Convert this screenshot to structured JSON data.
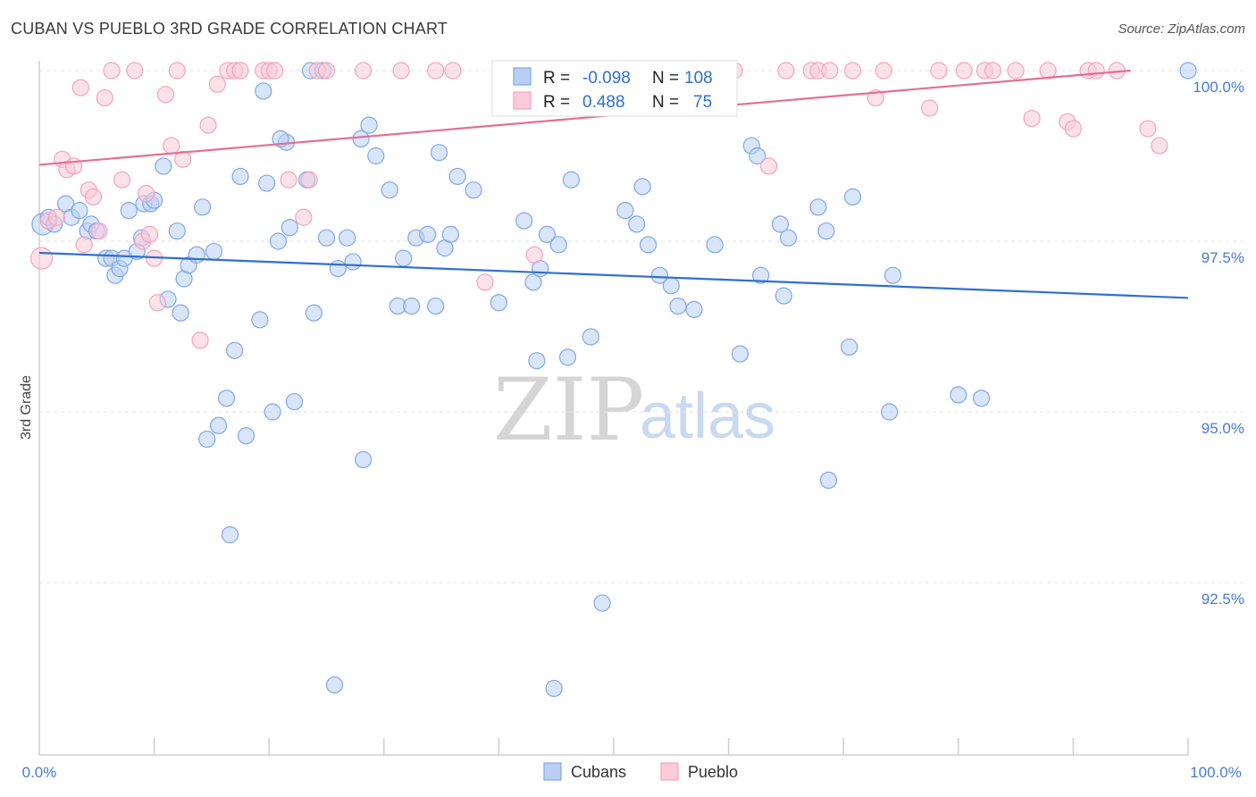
{
  "header": {
    "title": "CUBAN VS PUEBLO 3RD GRADE CORRELATION CHART",
    "source": "Source: ZipAtlas.com"
  },
  "chart_data": {
    "type": "scatter",
    "title": "CUBAN VS PUEBLO 3RD GRADE CORRELATION CHART",
    "xlabel": "",
    "ylabel": "3rd Grade",
    "xlim": [
      0,
      100
    ],
    "ylim": [
      90.3,
      100.4
    ],
    "x_tick_labels": [
      "0.0%",
      "100.0%"
    ],
    "y_ticks": [
      {
        "value": 92.5,
        "label": "92.5%"
      },
      {
        "value": 95.0,
        "label": "95.0%"
      },
      {
        "value": 97.5,
        "label": "97.5%"
      },
      {
        "value": 100.0,
        "label": "100.0%"
      }
    ],
    "grid": "horizontal-dashed",
    "legend_position": "top-center",
    "watermark": {
      "part1": "ZIP",
      "part2": "atlas"
    },
    "series": [
      {
        "name": "Cubans",
        "color": "#7fa8e8",
        "line_color": "#2f6fd0",
        "stats": {
          "r_label": "R =",
          "r_value": "-0.098",
          "n_label": "N =",
          "n_value": "108"
        },
        "trend": {
          "x": [
            0,
            100
          ],
          "y": [
            97.33,
            96.67
          ]
        },
        "points": [
          [
            0.3,
            97.75
          ],
          [
            0.8,
            97.85
          ],
          [
            1.3,
            97.75
          ],
          [
            2.3,
            98.05
          ],
          [
            2.8,
            97.85
          ],
          [
            3.5,
            97.95
          ],
          [
            4.2,
            97.65
          ],
          [
            4.5,
            97.75
          ],
          [
            5.0,
            97.65
          ],
          [
            5.8,
            97.25
          ],
          [
            6.3,
            97.25
          ],
          [
            6.6,
            97.0
          ],
          [
            7.0,
            97.1
          ],
          [
            7.4,
            97.25
          ],
          [
            7.8,
            97.95
          ],
          [
            8.5,
            97.35
          ],
          [
            8.9,
            97.55
          ],
          [
            9.1,
            98.05
          ],
          [
            9.7,
            98.05
          ],
          [
            10.0,
            98.1
          ],
          [
            10.8,
            98.6
          ],
          [
            11.2,
            96.65
          ],
          [
            12.0,
            97.65
          ],
          [
            12.3,
            96.45
          ],
          [
            12.6,
            96.95
          ],
          [
            13.0,
            97.15
          ],
          [
            13.7,
            97.3
          ],
          [
            14.2,
            98.0
          ],
          [
            14.6,
            94.6
          ],
          [
            15.2,
            97.35
          ],
          [
            15.6,
            94.8
          ],
          [
            16.3,
            95.2
          ],
          [
            16.6,
            93.2
          ],
          [
            17.0,
            95.9
          ],
          [
            17.5,
            98.45
          ],
          [
            18.0,
            94.65
          ],
          [
            19.2,
            96.35
          ],
          [
            19.5,
            99.7
          ],
          [
            19.8,
            98.35
          ],
          [
            20.3,
            95.0
          ],
          [
            20.8,
            97.5
          ],
          [
            21.5,
            98.95
          ],
          [
            21.8,
            97.7
          ],
          [
            22.2,
            95.15
          ],
          [
            23.3,
            98.4
          ],
          [
            23.6,
            100.0
          ],
          [
            23.9,
            96.45
          ],
          [
            24.7,
            100.0
          ],
          [
            25.0,
            97.55
          ],
          [
            25.7,
            91.0
          ],
          [
            26.0,
            97.1
          ],
          [
            26.8,
            97.55
          ],
          [
            27.3,
            97.2
          ],
          [
            28.2,
            94.3
          ],
          [
            28.0,
            99.0
          ],
          [
            28.7,
            99.2
          ],
          [
            29.3,
            98.75
          ],
          [
            30.5,
            98.25
          ],
          [
            31.2,
            96.55
          ],
          [
            31.7,
            97.25
          ],
          [
            32.4,
            96.55
          ],
          [
            32.8,
            97.55
          ],
          [
            33.8,
            97.6
          ],
          [
            34.5,
            96.55
          ],
          [
            34.8,
            98.8
          ],
          [
            35.3,
            97.4
          ],
          [
            35.8,
            97.6
          ],
          [
            36.4,
            98.45
          ],
          [
            37.8,
            98.25
          ],
          [
            40.0,
            96.6
          ],
          [
            42.2,
            97.8
          ],
          [
            43.0,
            96.9
          ],
          [
            43.3,
            95.75
          ],
          [
            43.6,
            97.1
          ],
          [
            44.2,
            97.6
          ],
          [
            44.8,
            90.95
          ],
          [
            45.2,
            97.45
          ],
          [
            46.0,
            95.8
          ],
          [
            46.3,
            98.4
          ],
          [
            48.0,
            96.1
          ],
          [
            49.0,
            92.2
          ],
          [
            51.0,
            97.95
          ],
          [
            52.0,
            97.75
          ],
          [
            52.5,
            98.3
          ],
          [
            53.0,
            97.45
          ],
          [
            54.0,
            97.0
          ],
          [
            55.0,
            96.85
          ],
          [
            55.6,
            96.55
          ],
          [
            57.0,
            96.5
          ],
          [
            58.8,
            97.45
          ],
          [
            61.0,
            95.85
          ],
          [
            62.0,
            98.9
          ],
          [
            62.5,
            98.75
          ],
          [
            62.8,
            97.0
          ],
          [
            64.5,
            97.75
          ],
          [
            64.8,
            96.7
          ],
          [
            65.2,
            97.55
          ],
          [
            67.8,
            98.0
          ],
          [
            68.5,
            97.65
          ],
          [
            68.7,
            94.0
          ],
          [
            70.5,
            95.95
          ],
          [
            70.8,
            98.15
          ],
          [
            74.0,
            95.0
          ],
          [
            74.3,
            97.0
          ],
          [
            80.0,
            95.25
          ],
          [
            82.0,
            95.2
          ],
          [
            100.0,
            100.0
          ],
          [
            21.0,
            99.0
          ]
        ]
      },
      {
        "name": "Pueblo",
        "color": "#f5a3bc",
        "line_color": "#e36f96",
        "stats": {
          "r_label": "R =",
          "r_value": "0.488",
          "n_label": "N =",
          "n_value": "75"
        },
        "trend": {
          "x": [
            0,
            95
          ],
          "y": [
            98.62,
            100.0
          ]
        },
        "points": [
          [
            0.2,
            97.25
          ],
          [
            0.8,
            97.8
          ],
          [
            1.5,
            97.85
          ],
          [
            2.0,
            98.7
          ],
          [
            2.4,
            98.55
          ],
          [
            3.0,
            98.6
          ],
          [
            3.6,
            99.75
          ],
          [
            3.9,
            97.45
          ],
          [
            4.3,
            98.25
          ],
          [
            4.7,
            98.15
          ],
          [
            5.2,
            97.65
          ],
          [
            5.7,
            99.6
          ],
          [
            6.3,
            100.0
          ],
          [
            7.2,
            98.4
          ],
          [
            8.3,
            100.0
          ],
          [
            9.0,
            97.5
          ],
          [
            9.3,
            98.2
          ],
          [
            9.6,
            97.6
          ],
          [
            10.0,
            97.25
          ],
          [
            10.3,
            96.6
          ],
          [
            11.0,
            99.65
          ],
          [
            11.5,
            98.9
          ],
          [
            12.0,
            100.0
          ],
          [
            12.5,
            98.7
          ],
          [
            14.0,
            96.05
          ],
          [
            14.7,
            99.2
          ],
          [
            15.5,
            99.8
          ],
          [
            16.4,
            100.0
          ],
          [
            17.0,
            100.0
          ],
          [
            17.5,
            100.0
          ],
          [
            19.5,
            100.0
          ],
          [
            20.0,
            100.0
          ],
          [
            20.5,
            100.0
          ],
          [
            21.7,
            98.4
          ],
          [
            23.0,
            97.85
          ],
          [
            23.5,
            98.4
          ],
          [
            24.2,
            100.0
          ],
          [
            25.0,
            100.0
          ],
          [
            28.2,
            100.0
          ],
          [
            31.5,
            100.0
          ],
          [
            34.5,
            100.0
          ],
          [
            36.0,
            100.0
          ],
          [
            38.8,
            96.9
          ],
          [
            40.3,
            99.65
          ],
          [
            43.1,
            97.3
          ],
          [
            45.0,
            100.0
          ],
          [
            45.5,
            100.0
          ],
          [
            48.3,
            100.0
          ],
          [
            50.5,
            100.0
          ],
          [
            53.0,
            100.0
          ],
          [
            57.0,
            100.0
          ],
          [
            60.5,
            100.0
          ],
          [
            63.5,
            98.6
          ],
          [
            65.0,
            100.0
          ],
          [
            67.2,
            100.0
          ],
          [
            67.8,
            100.0
          ],
          [
            68.8,
            100.0
          ],
          [
            70.8,
            100.0
          ],
          [
            72.8,
            99.6
          ],
          [
            73.5,
            100.0
          ],
          [
            77.5,
            99.45
          ],
          [
            78.3,
            100.0
          ],
          [
            80.5,
            100.0
          ],
          [
            82.3,
            100.0
          ],
          [
            83.0,
            100.0
          ],
          [
            85.0,
            100.0
          ],
          [
            86.4,
            99.3
          ],
          [
            87.8,
            100.0
          ],
          [
            89.5,
            99.25
          ],
          [
            90.0,
            99.15
          ],
          [
            91.3,
            100.0
          ],
          [
            92.0,
            100.0
          ],
          [
            93.8,
            100.0
          ],
          [
            96.5,
            99.15
          ],
          [
            97.5,
            98.9
          ]
        ]
      }
    ]
  }
}
